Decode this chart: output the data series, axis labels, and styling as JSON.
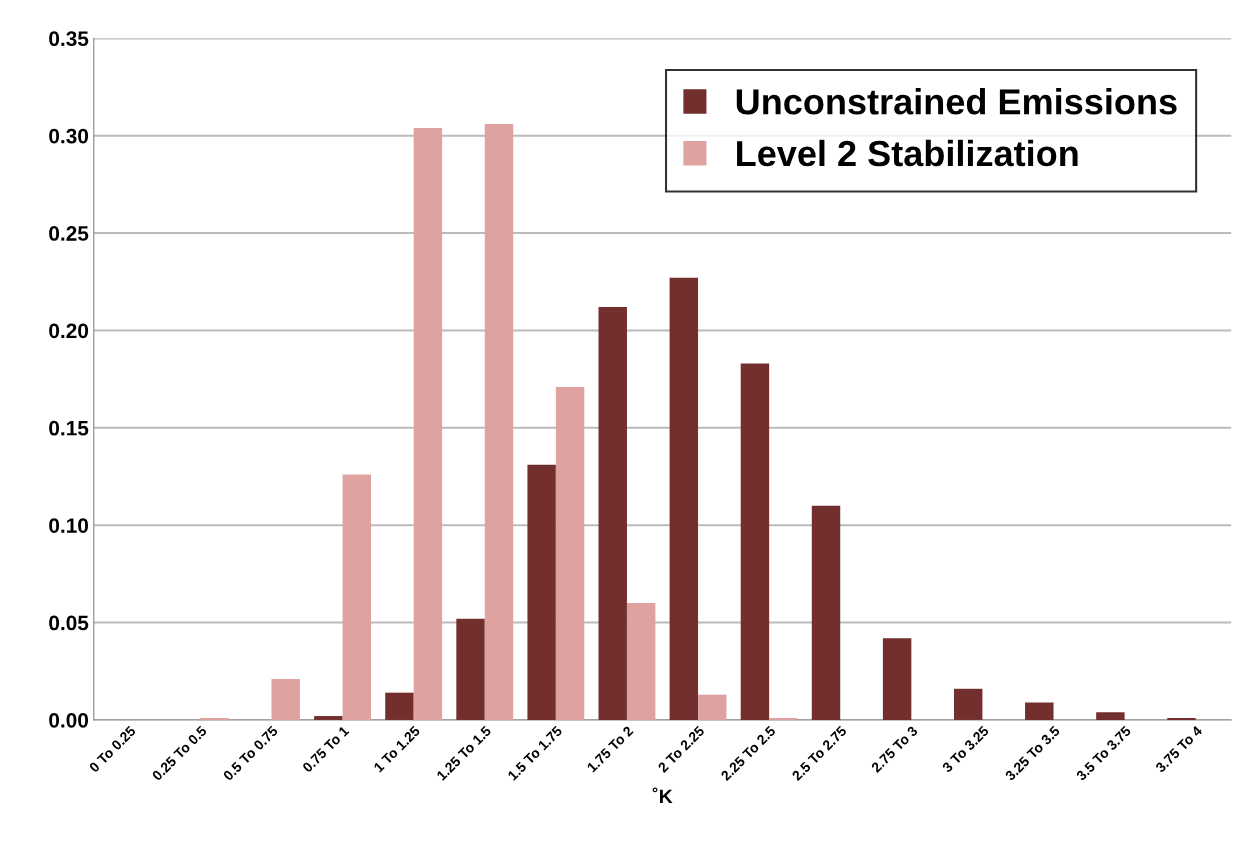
{
  "chart_data": {
    "type": "bar",
    "xlabel": "˚K",
    "categories": [
      "0 To 0.25",
      "0.25 To 0.5",
      "0.5 To 0.75",
      "0.75 To 1",
      "1 To 1.25",
      "1.25 To 1.5",
      "1.5 To 1.75",
      "1.75 To 2",
      "2 To 2.25",
      "2.25 To 2.5",
      "2.5 To 2.75",
      "2.75 To 3",
      "3 To 3.25",
      "3.25 To 3.5",
      "3.5 To 3.75",
      "3.75 To 4"
    ],
    "series": [
      {
        "name": "Unconstrained Emissions",
        "color": "#722f2d",
        "values": [
          0,
          0,
          0,
          0.002,
          0.014,
          0.052,
          0.131,
          0.212,
          0.227,
          0.183,
          0.11,
          0.042,
          0.016,
          0.009,
          0.004,
          0.001
        ]
      },
      {
        "name": "Level 2 Stabilization",
        "color": "#dea3a0",
        "values": [
          0,
          0.001,
          0.021,
          0.126,
          0.304,
          0.306,
          0.171,
          0.06,
          0.013,
          0.001,
          0,
          0,
          0,
          0,
          0,
          0
        ]
      }
    ],
    "ylim": [
      0,
      0.35
    ],
    "yticks": [
      {
        "value": 0,
        "label": "0.00"
      },
      {
        "value": 0.05,
        "label": "0.05"
      },
      {
        "value": 0.1,
        "label": "0.10"
      },
      {
        "value": 0.15,
        "label": "0.15"
      },
      {
        "value": 0.2,
        "label": "0.20"
      },
      {
        "value": 0.25,
        "label": "0.25"
      },
      {
        "value": 0.3,
        "label": "0.30"
      },
      {
        "value": 0.35,
        "label": "0.35"
      }
    ],
    "grid": "y",
    "legend": "top right"
  }
}
